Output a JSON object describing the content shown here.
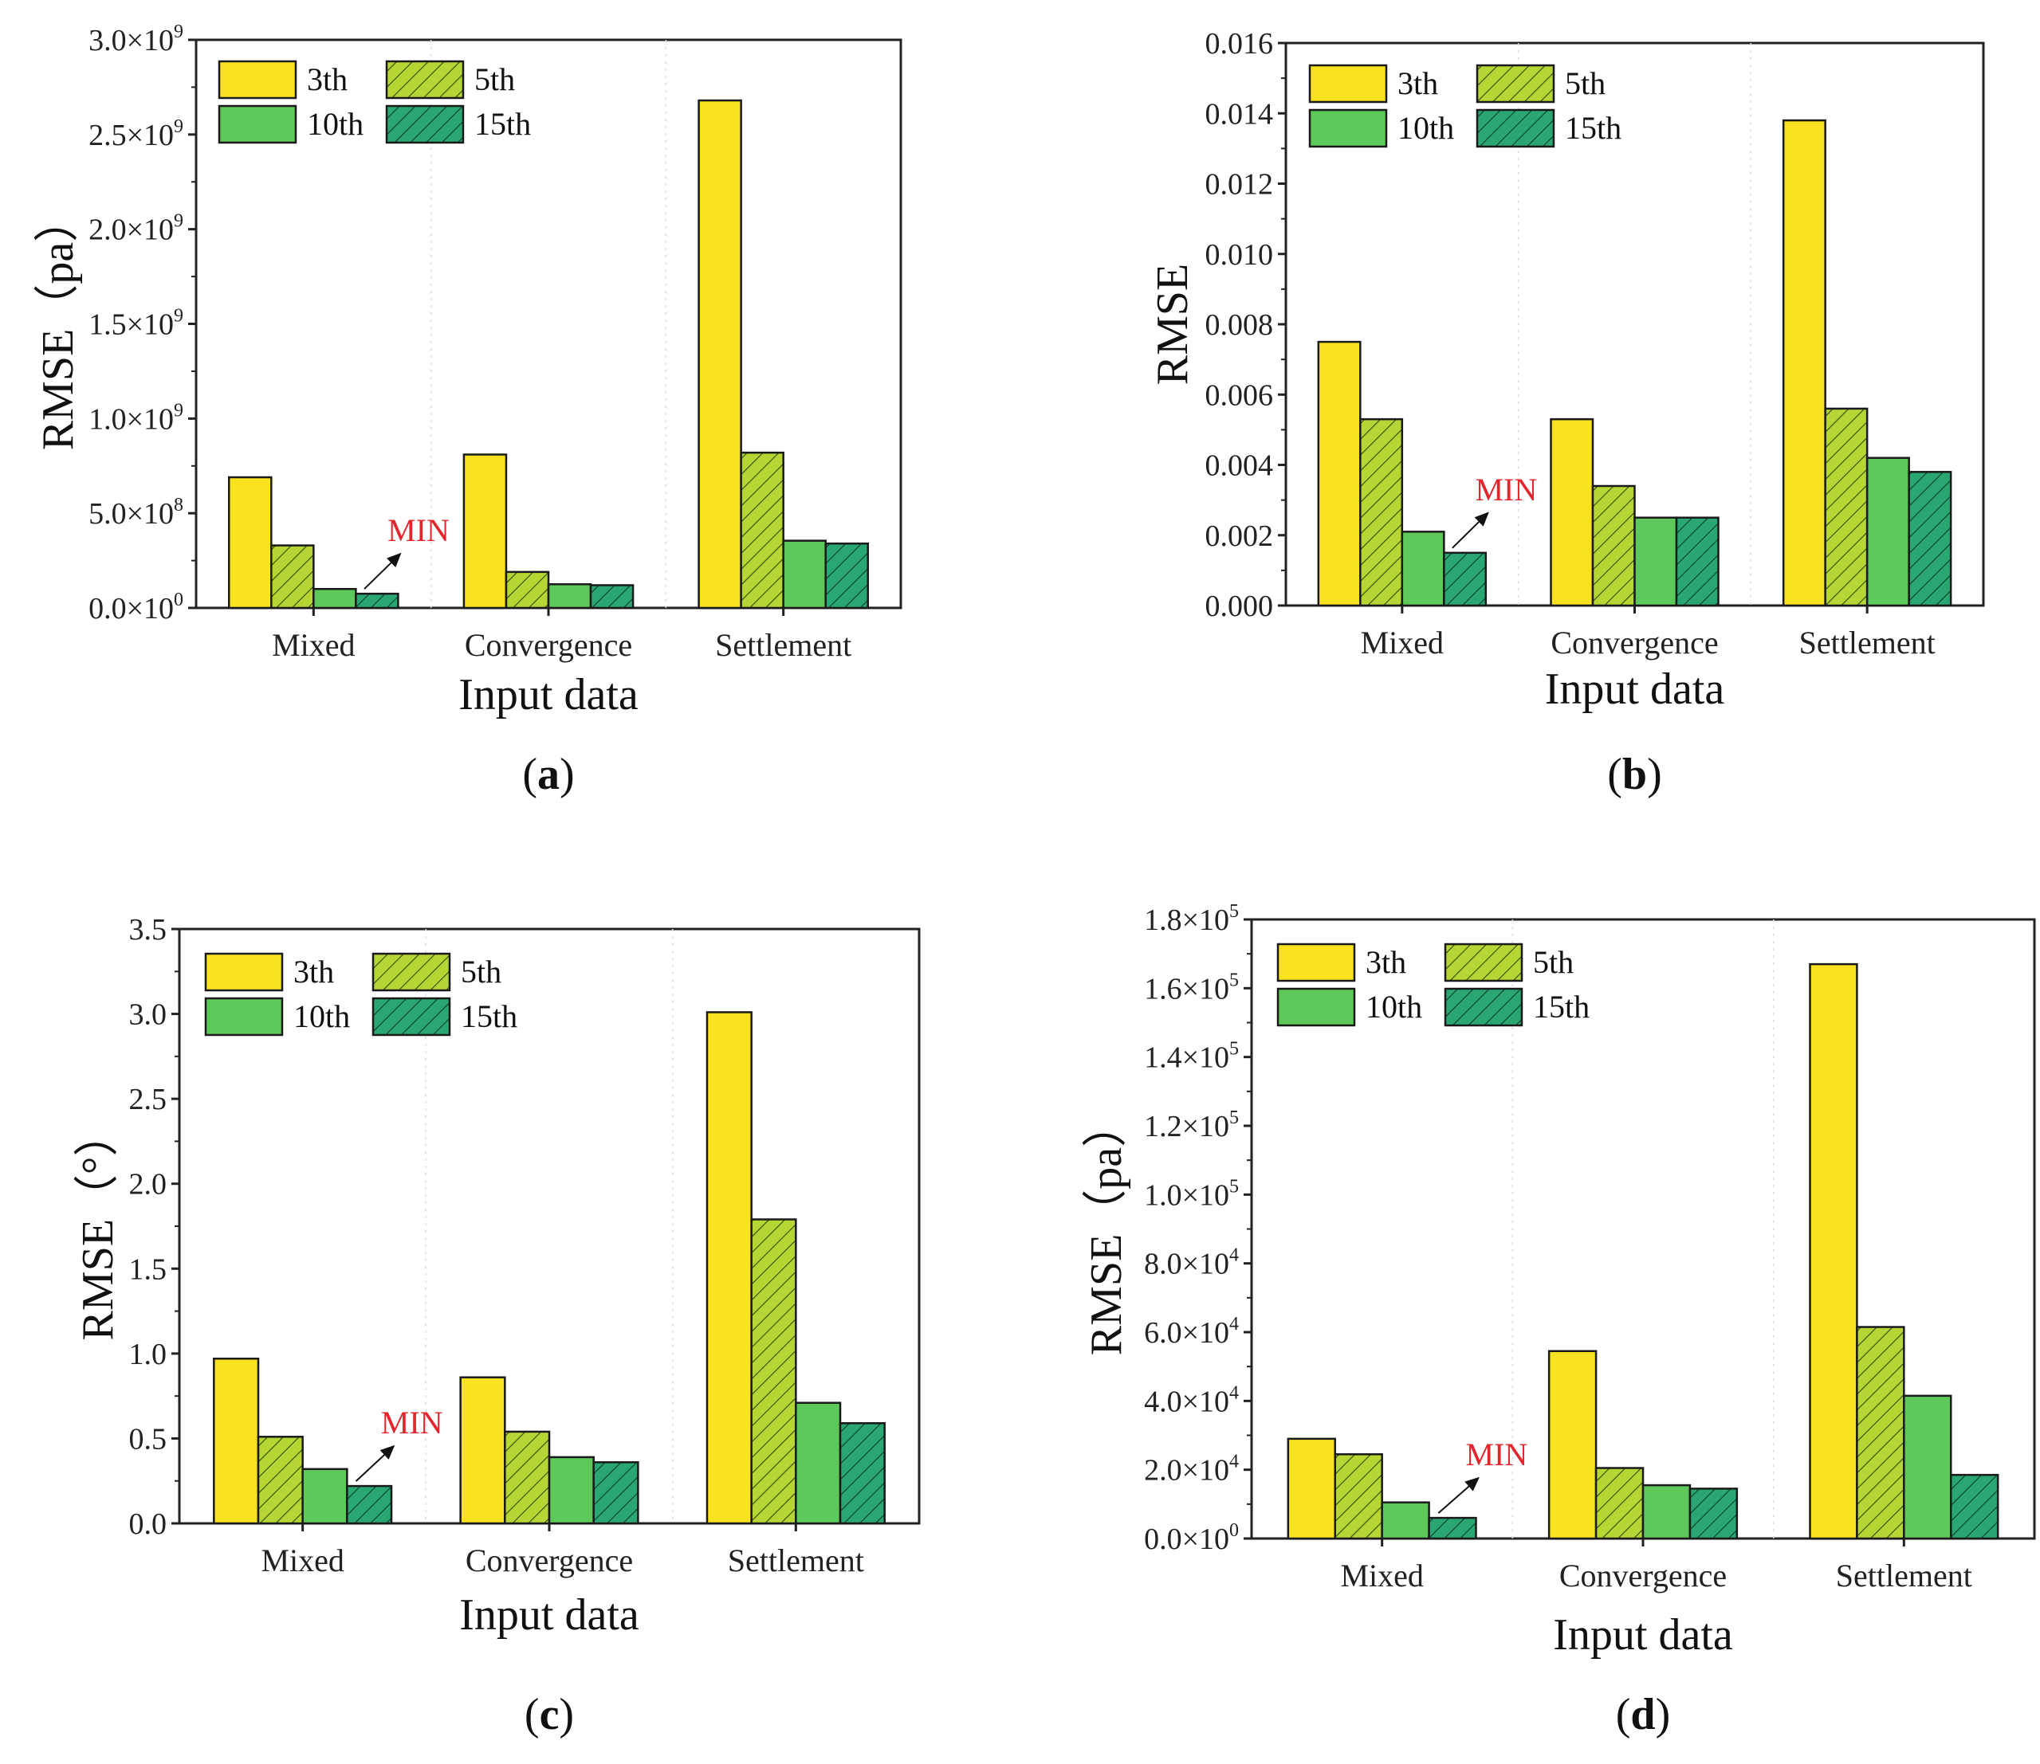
{
  "colors": {
    "yellow": "#f9e21f",
    "light_green": "#b5d634",
    "green": "#5ec85b",
    "teal": "#2aa672",
    "min_red": "#e3262b",
    "axis": "#222222"
  },
  "chart_data": [
    {
      "type": "bar",
      "panel_label": "(a)",
      "panel_letter": "a",
      "xlabel": "Input data",
      "ylabel_main": "RMSE",
      "ylabel_suffix": "（pa）",
      "categories": [
        "Mixed",
        "Convergence",
        "Settlement"
      ],
      "series": [
        {
          "name": "3th",
          "values": [
            690000000,
            810000000,
            2680000000
          ]
        },
        {
          "name": "5th",
          "values": [
            330000000,
            190000000,
            820000000
          ]
        },
        {
          "name": "10th",
          "values": [
            100000000,
            125000000,
            355000000
          ]
        },
        {
          "name": "15th",
          "values": [
            75000000,
            120000000,
            340000000
          ]
        }
      ],
      "ylim": [
        0,
        3000000000
      ],
      "yticks": [
        {
          "value": 0,
          "mant": "0.0×10",
          "exp": "0"
        },
        {
          "value": 500000000,
          "mant": "5.0×10",
          "exp": "8"
        },
        {
          "value": 1000000000,
          "mant": "1.0×10",
          "exp": "9"
        },
        {
          "value": 1500000000,
          "mant": "1.5×10",
          "exp": "9"
        },
        {
          "value": 2000000000,
          "mant": "2.0×10",
          "exp": "9"
        },
        {
          "value": 2500000000,
          "mant": "2.5×10",
          "exp": "9"
        },
        {
          "value": 3000000000,
          "mant": "3.0×10",
          "exp": "9"
        }
      ],
      "legend": {
        "entries": [
          "3th",
          "5th",
          "10th",
          "15th"
        ],
        "position": "top-left"
      },
      "annotation": {
        "text": "MIN",
        "target_category": "Mixed",
        "target_series": "15th"
      }
    },
    {
      "type": "bar",
      "panel_label": "(b)",
      "panel_letter": "b",
      "xlabel": "Input data",
      "ylabel_main": "RMSE",
      "ylabel_suffix": "",
      "categories": [
        "Mixed",
        "Convergence",
        "Settlement"
      ],
      "series": [
        {
          "name": "3th",
          "values": [
            0.0075,
            0.0053,
            0.0138
          ]
        },
        {
          "name": "5th",
          "values": [
            0.0053,
            0.0034,
            0.0056
          ]
        },
        {
          "name": "10th",
          "values": [
            0.0021,
            0.0025,
            0.0042
          ]
        },
        {
          "name": "15th",
          "values": [
            0.0015,
            0.0025,
            0.0038
          ]
        }
      ],
      "ylim": [
        0,
        0.016
      ],
      "yticks": [
        {
          "value": 0,
          "mant": "0.000",
          "exp": ""
        },
        {
          "value": 0.002,
          "mant": "0.002",
          "exp": ""
        },
        {
          "value": 0.004,
          "mant": "0.004",
          "exp": ""
        },
        {
          "value": 0.006,
          "mant": "0.006",
          "exp": ""
        },
        {
          "value": 0.008,
          "mant": "0.008",
          "exp": ""
        },
        {
          "value": 0.01,
          "mant": "0.010",
          "exp": ""
        },
        {
          "value": 0.012,
          "mant": "0.012",
          "exp": ""
        },
        {
          "value": 0.014,
          "mant": "0.014",
          "exp": ""
        },
        {
          "value": 0.016,
          "mant": "0.016",
          "exp": ""
        }
      ],
      "legend": {
        "entries": [
          "3th",
          "5th",
          "10th",
          "15th"
        ],
        "position": "top-left"
      },
      "annotation": {
        "text": "MIN",
        "target_category": "Mixed",
        "target_series": "15th"
      }
    },
    {
      "type": "bar",
      "panel_label": "(c)",
      "panel_letter": "c",
      "xlabel": "Input data",
      "ylabel_main": "RMSE",
      "ylabel_suffix": "（°）",
      "categories": [
        "Mixed",
        "Convergence",
        "Settlement"
      ],
      "series": [
        {
          "name": "3th",
          "values": [
            0.97,
            0.86,
            3.01
          ]
        },
        {
          "name": "5th",
          "values": [
            0.51,
            0.54,
            1.79
          ]
        },
        {
          "name": "10th",
          "values": [
            0.32,
            0.39,
            0.71
          ]
        },
        {
          "name": "15th",
          "values": [
            0.22,
            0.36,
            0.59
          ]
        }
      ],
      "ylim": [
        0,
        3.5
      ],
      "yticks": [
        {
          "value": 0,
          "mant": "0.0",
          "exp": ""
        },
        {
          "value": 0.5,
          "mant": "0.5",
          "exp": ""
        },
        {
          "value": 1.0,
          "mant": "1.0",
          "exp": ""
        },
        {
          "value": 1.5,
          "mant": "1.5",
          "exp": ""
        },
        {
          "value": 2.0,
          "mant": "2.0",
          "exp": ""
        },
        {
          "value": 2.5,
          "mant": "2.5",
          "exp": ""
        },
        {
          "value": 3.0,
          "mant": "3.0",
          "exp": ""
        },
        {
          "value": 3.5,
          "mant": "3.5",
          "exp": ""
        }
      ],
      "legend": {
        "entries": [
          "3th",
          "5th",
          "10th",
          "15th"
        ],
        "position": "top-left"
      },
      "annotation": {
        "text": "MIN",
        "target_category": "Mixed",
        "target_series": "15th"
      }
    },
    {
      "type": "bar",
      "panel_label": "(d)",
      "panel_letter": "d",
      "xlabel": "Input data",
      "ylabel_main": "RMSE",
      "ylabel_suffix": "（pa）",
      "categories": [
        "Mixed",
        "Convergence",
        "Settlement"
      ],
      "series": [
        {
          "name": "3th",
          "values": [
            29000,
            54500,
            167000
          ]
        },
        {
          "name": "5th",
          "values": [
            24500,
            20500,
            61500
          ]
        },
        {
          "name": "10th",
          "values": [
            10500,
            15500,
            41500
          ]
        },
        {
          "name": "15th",
          "values": [
            6000,
            14500,
            18500
          ]
        }
      ],
      "ylim": [
        0,
        180000
      ],
      "yticks": [
        {
          "value": 0,
          "mant": "0.0×10",
          "exp": "0"
        },
        {
          "value": 20000,
          "mant": "2.0×10",
          "exp": "4"
        },
        {
          "value": 40000,
          "mant": "4.0×10",
          "exp": "4"
        },
        {
          "value": 60000,
          "mant": "6.0×10",
          "exp": "4"
        },
        {
          "value": 80000,
          "mant": "8.0×10",
          "exp": "4"
        },
        {
          "value": 100000,
          "mant": "1.0×10",
          "exp": "5"
        },
        {
          "value": 120000,
          "mant": "1.2×10",
          "exp": "5"
        },
        {
          "value": 140000,
          "mant": "1.4×10",
          "exp": "5"
        },
        {
          "value": 160000,
          "mant": "1.6×10",
          "exp": "5"
        },
        {
          "value": 180000,
          "mant": "1.8×10",
          "exp": "5"
        }
      ],
      "legend": {
        "entries": [
          "3th",
          "5th",
          "10th",
          "15th"
        ],
        "position": "top-left"
      },
      "annotation": {
        "text": "MIN",
        "target_category": "Mixed",
        "target_series": "15th"
      }
    }
  ]
}
